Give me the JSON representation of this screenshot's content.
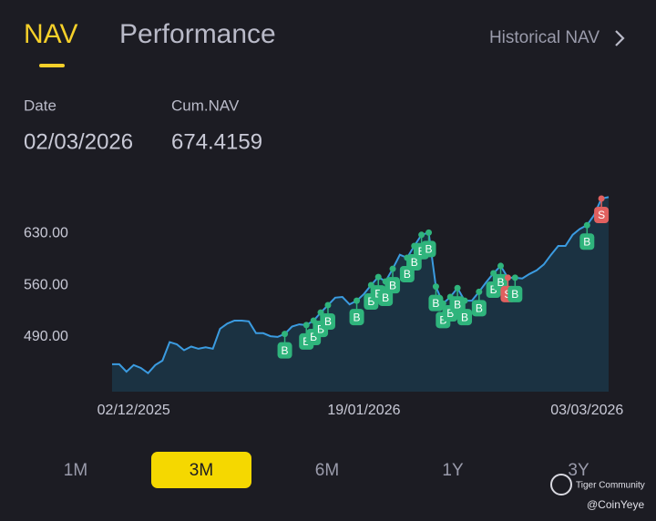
{
  "tabs": [
    "NAV",
    "Performance"
  ],
  "link": "Historical NAV",
  "info": {
    "date_label": "Date",
    "date": "02/03/2026",
    "nav_label": "Cum.NAV",
    "nav": "674.4159"
  },
  "chart_data": {
    "type": "line",
    "color": "#3b9be0",
    "area_color": "#1b3242",
    "categories": [
      null,
      null,
      null,
      "02/12/2025",
      null,
      null,
      null,
      null,
      null,
      null,
      null,
      null,
      null,
      null,
      null,
      null,
      null,
      null,
      null,
      null,
      null,
      null,
      null,
      null,
      null,
      null,
      null,
      null,
      null,
      null,
      null,
      null,
      null,
      null,
      null,
      "19/01/2026",
      null,
      null,
      null,
      null,
      null,
      null,
      null,
      null,
      null,
      null,
      null,
      null,
      null,
      null,
      null,
      null,
      null,
      null,
      null,
      null,
      null,
      null,
      null,
      null,
      null,
      null,
      null,
      null,
      null,
      null,
      "03/03/2026",
      null,
      null,
      null
    ],
    "values": [
      453,
      453,
      443,
      452,
      448,
      441,
      452,
      458,
      483,
      480,
      472,
      477,
      474,
      476,
      474,
      501,
      508,
      512,
      512,
      511,
      495,
      495,
      491,
      490,
      494,
      504,
      507,
      506,
      512,
      523,
      533,
      543,
      544,
      534,
      539,
      548,
      560,
      571,
      565,
      582,
      601,
      597,
      613,
      628,
      631,
      558,
      535,
      544,
      556,
      539,
      539,
      551,
      564,
      576,
      586,
      570,
      570,
      569,
      575,
      580,
      588,
      601,
      613,
      613,
      628,
      636,
      641,
      655,
      677,
      679
    ],
    "trades": [
      null,
      null,
      null,
      null,
      null,
      null,
      null,
      null,
      null,
      null,
      null,
      null,
      null,
      null,
      null,
      null,
      null,
      null,
      null,
      null,
      null,
      null,
      null,
      null,
      "B",
      null,
      null,
      "B",
      "B",
      "B",
      "B",
      null,
      null,
      null,
      "B",
      null,
      "B",
      "B",
      "B",
      "B",
      null,
      "B",
      "B",
      "B",
      "B",
      "B",
      "B",
      "B",
      "B",
      "B",
      null,
      "B",
      null,
      "B",
      "B",
      "S",
      "B",
      null,
      null,
      null,
      null,
      null,
      null,
      null,
      null,
      null,
      "B",
      null,
      "S",
      null
    ],
    "trade_colors": {
      "B": "#2fb47c",
      "S": "#e0605f"
    },
    "ylim": [
      416,
      693
    ],
    "yticks": [
      {
        "value": 490,
        "label": "490.00"
      },
      {
        "value": 560,
        "label": "560.00"
      },
      {
        "value": 630,
        "label": "630.00"
      }
    ],
    "grid": false
  },
  "ranges": [
    "1M",
    "3M",
    "6M",
    "1Y",
    "3Y"
  ],
  "watermark": {
    "brand": "Tiger Community",
    "handle": "@CoinYeye"
  }
}
